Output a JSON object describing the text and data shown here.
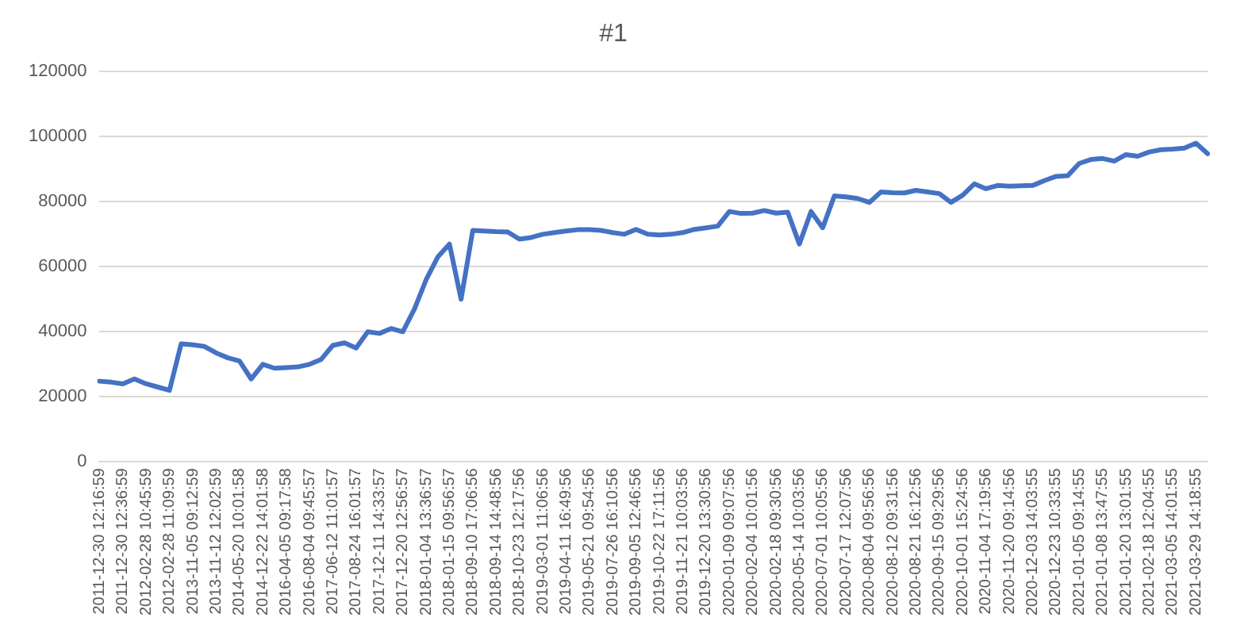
{
  "chart_data": {
    "type": "line",
    "title": "#1",
    "categories": [
      "2011-12-30 12:16:59",
      null,
      "2011-12-30 12:36:59",
      null,
      "2012-02-28 10:45:59",
      null,
      "2012-02-28 11:09:59",
      null,
      "2013-11-05 09:12:59",
      null,
      "2013-11-12 12:02:59",
      null,
      "2014-05-20 10:01:58",
      null,
      "2014-12-22 14:01:58",
      null,
      "2016-04-05 09:17:58",
      null,
      "2016-08-04 09:45:57",
      null,
      "2017-06-12 11:01:57",
      null,
      "2017-08-24 16:01:57",
      null,
      "2017-12-11 14:33:57",
      null,
      "2017-12-20 12:56:57",
      null,
      "2018-01-04 13:36:57",
      null,
      "2018-01-15 09:56:57",
      null,
      "2018-09-10 17:06:56",
      null,
      "2018-09-14 14:48:56",
      null,
      "2018-10-23 12:17:56",
      null,
      "2019-03-01 11:06:56",
      null,
      "2019-04-11 16:49:56",
      null,
      "2019-05-21 09:54:56",
      null,
      "2019-07-26 16:10:56",
      null,
      "2019-09-05 12:46:56",
      null,
      "2019-10-22 17:11:56",
      null,
      "2019-11-21 10:03:56",
      null,
      "2019-12-20 13:30:56",
      null,
      "2020-01-09 09:07:56",
      null,
      "2020-02-04 10:01:56",
      null,
      "2020-02-18 09:30:56",
      null,
      "2020-05-14 10:03:56",
      null,
      "2020-07-01 10:05:56",
      null,
      "2020-07-17 12:07:56",
      null,
      "2020-08-04 09:56:56",
      null,
      "2020-08-12 09:31:56",
      null,
      "2020-08-21 16:12:56",
      null,
      "2020-09-15 09:29:56",
      null,
      "2020-10-01 15:24:56",
      null,
      "2020-11-04 17:19:56",
      null,
      "2020-11-20 09:14:56",
      null,
      "2020-12-03 14:03:55",
      null,
      "2020-12-23 10:33:55",
      null,
      "2021-01-05 09:14:55",
      null,
      "2021-01-08 13:47:55",
      null,
      "2021-01-20 13:01:55",
      null,
      "2021-02-18 12:04:55",
      null,
      "2021-03-05 14:01:55",
      null,
      "2021-03-29 14:18:55",
      null
    ],
    "series": [
      {
        "color": "#4472c4",
        "values": [
          24800,
          24500,
          24000,
          25500,
          24000,
          23000,
          22000,
          36300,
          36000,
          35500,
          33500,
          32000,
          31000,
          25500,
          30000,
          28800,
          29000,
          29200,
          30000,
          31500,
          35800,
          36600,
          35000,
          40000,
          39500,
          41000,
          40000,
          47000,
          56000,
          63000,
          67000,
          50000,
          71200,
          71000,
          70800,
          70700,
          68500,
          69000,
          70000,
          70500,
          71000,
          71400,
          71400,
          71200,
          70500,
          70000,
          71500,
          70000,
          69800,
          70000,
          70500,
          71500,
          72000,
          72500,
          77000,
          76400,
          76500,
          77300,
          76500,
          76800,
          67000,
          77000,
          72000,
          81800,
          81500,
          81000,
          79800,
          83000,
          82800,
          82700,
          83500,
          83000,
          82500,
          79800,
          82000,
          85500,
          84000,
          85000,
          84800,
          84900,
          85000,
          86500,
          87800,
          88000,
          91800,
          93000,
          93300,
          92500,
          94500,
          94000,
          95300,
          96000,
          96200,
          96500,
          98000,
          94800
        ]
      }
    ],
    "ylim": [
      0,
      120000
    ],
    "yticks": [
      0,
      20000,
      40000,
      60000,
      80000,
      100000,
      120000
    ],
    "grid": "y",
    "legend": false,
    "marker": "none",
    "line_style": "solid"
  }
}
